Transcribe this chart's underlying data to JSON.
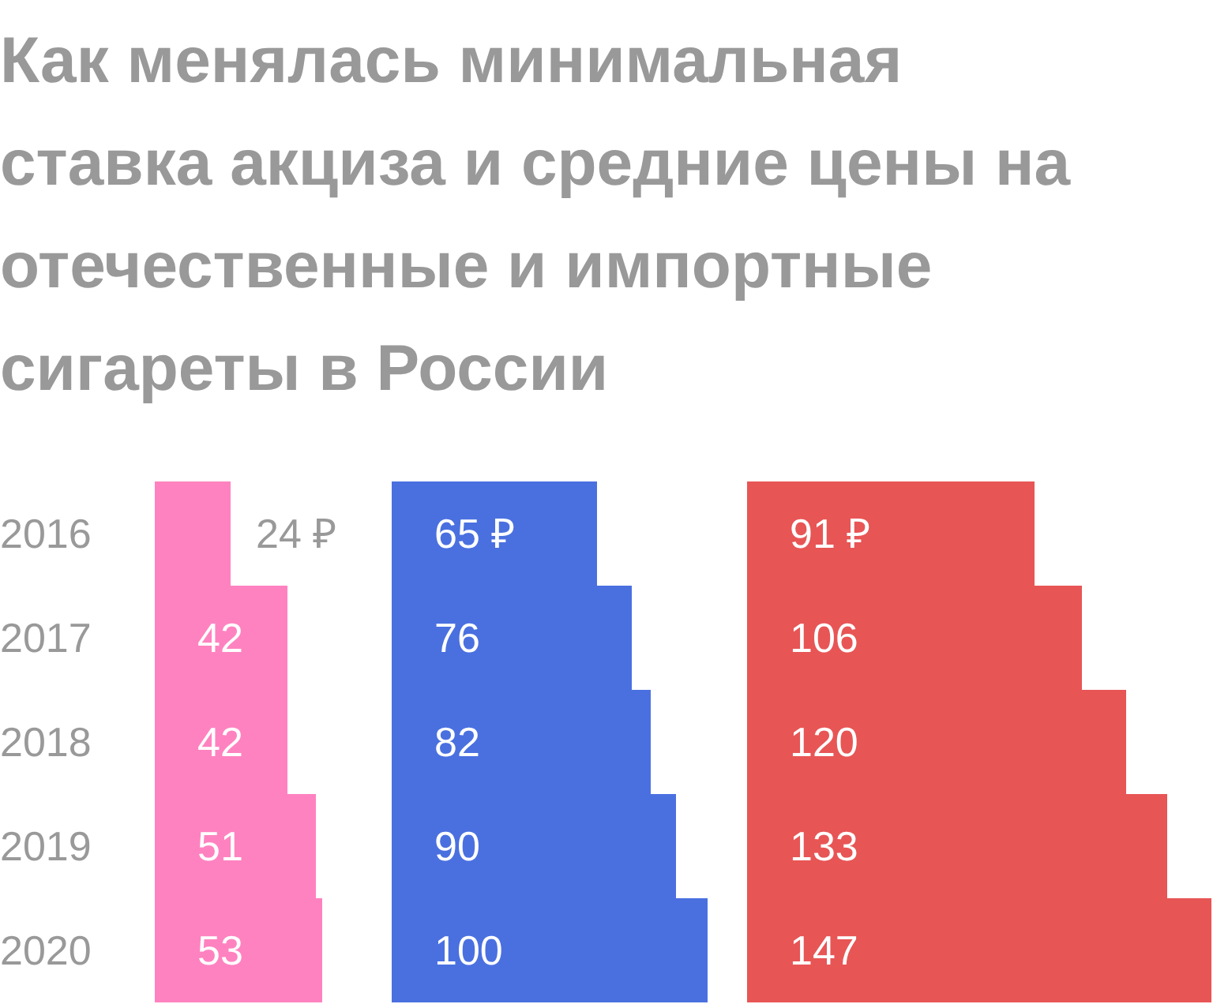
{
  "chart_data": [
    {
      "type": "bar",
      "orientation": "horizontal",
      "title": "Как менялась минимальная ставка акциза и средние цены на отечественные и импортные сигареты в России",
      "categories": [
        "2016",
        "2017",
        "2018",
        "2019",
        "2020"
      ],
      "tick_labels": "y",
      "legend": false,
      "series": [
        {
          "color": "#ff82c0",
          "values": [
            24,
            42,
            42,
            51,
            53
          ],
          "value_labels": [
            "24 ₽",
            "42",
            "42",
            "51",
            "53"
          ]
        }
      ]
    },
    {
      "type": "bar",
      "orientation": "horizontal",
      "categories": [
        "2016",
        "2017",
        "2018",
        "2019",
        "2020"
      ],
      "tick_labels": false,
      "legend": false,
      "series": [
        {
          "color": "#4a70e0",
          "values": [
            65,
            76,
            82,
            90,
            100
          ],
          "value_labels": [
            "65 ₽",
            "76",
            "82",
            "90",
            "100"
          ]
        }
      ]
    },
    {
      "type": "bar",
      "orientation": "horizontal",
      "categories": [
        "2016",
        "2017",
        "2018",
        "2019",
        "2020"
      ],
      "tick_labels": false,
      "legend": false,
      "series": [
        {
          "color": "#e85555",
          "values": [
            91,
            106,
            120,
            133,
            147
          ],
          "value_labels": [
            "91 ₽",
            "106",
            "120",
            "133",
            "147"
          ]
        }
      ]
    }
  ]
}
